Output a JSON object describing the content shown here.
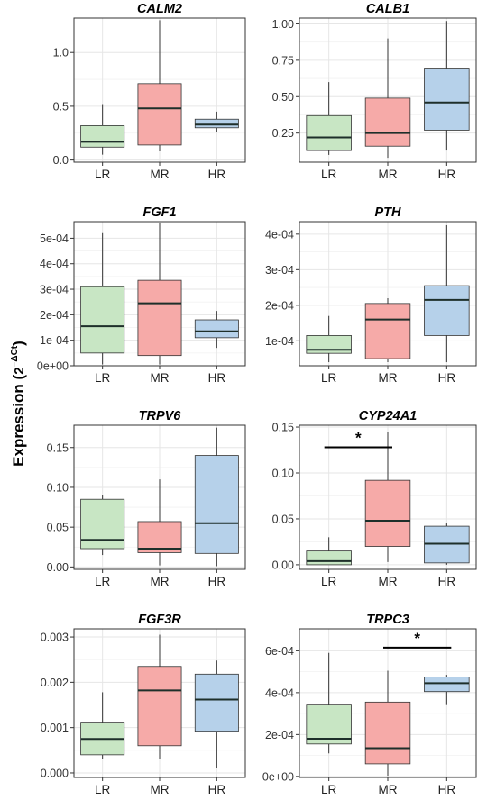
{
  "figure": {
    "y_axis_label_main": "Expression (",
    "y_axis_label_base": "2",
    "y_axis_label_exp": "−ΔCt",
    "y_axis_label_close": ")"
  },
  "colors": {
    "LR": "#c8e6c4",
    "MR": "#f6aaa8",
    "HR": "#b6d1ea",
    "whisker": "#333333",
    "median": "#1e2f2a",
    "grid": "#e6e6e6",
    "panel_border": "#333333"
  },
  "chart_data": [
    {
      "type": "boxplot",
      "title": "CALM2",
      "categories": [
        "LR",
        "MR",
        "HR"
      ],
      "ylim": [
        -0.02,
        1.32
      ],
      "yticks": [
        0.0,
        0.5,
        1.0
      ],
      "yticklabels": [
        "0.0",
        "0.5",
        "1.0"
      ],
      "boxes": [
        {
          "category": "LR",
          "whisker_low": 0.05,
          "q1": 0.12,
          "median": 0.17,
          "q3": 0.32,
          "whisker_high": 0.52
        },
        {
          "category": "MR",
          "whisker_low": 0.08,
          "q1": 0.14,
          "median": 0.48,
          "q3": 0.71,
          "whisker_high": 1.3
        },
        {
          "category": "HR",
          "whisker_low": 0.26,
          "q1": 0.3,
          "median": 0.33,
          "q3": 0.38,
          "whisker_high": 0.45
        }
      ],
      "significance": []
    },
    {
      "type": "boxplot",
      "title": "CALB1",
      "categories": [
        "LR",
        "MR",
        "HR"
      ],
      "ylim": [
        0.05,
        1.04
      ],
      "yticks": [
        0.25,
        0.5,
        0.75,
        1.0
      ],
      "yticklabels": [
        "0.25",
        "0.50",
        "0.75",
        "1.00"
      ],
      "boxes": [
        {
          "category": "LR",
          "whisker_low": 0.1,
          "q1": 0.13,
          "median": 0.22,
          "q3": 0.37,
          "whisker_high": 0.6
        },
        {
          "category": "MR",
          "whisker_low": 0.08,
          "q1": 0.16,
          "median": 0.25,
          "q3": 0.49,
          "whisker_high": 0.9
        },
        {
          "category": "HR",
          "whisker_low": 0.13,
          "q1": 0.27,
          "median": 0.46,
          "q3": 0.69,
          "whisker_high": 1.02
        }
      ],
      "significance": []
    },
    {
      "type": "boxplot",
      "title": "FGF1",
      "categories": [
        "LR",
        "MR",
        "HR"
      ],
      "ylim": [
        0,
        0.000565
      ],
      "yticks": [
        0,
        0.0001,
        0.0002,
        0.0003,
        0.0004,
        0.0005
      ],
      "yticklabels": [
        "0e+00",
        "1e-04",
        "2e-04",
        "3e-04",
        "4e-04",
        "5e-04"
      ],
      "boxes": [
        {
          "category": "LR",
          "whisker_low": 5e-06,
          "q1": 5e-05,
          "median": 0.000155,
          "q3": 0.00031,
          "whisker_high": 0.00052
        },
        {
          "category": "MR",
          "whisker_low": 5e-06,
          "q1": 4e-05,
          "median": 0.000245,
          "q3": 0.000335,
          "whisker_high": 0.00056
        },
        {
          "category": "HR",
          "whisker_low": 7e-05,
          "q1": 0.00011,
          "median": 0.000135,
          "q3": 0.00018,
          "whisker_high": 0.000215
        }
      ],
      "significance": []
    },
    {
      "type": "boxplot",
      "title": "PTH",
      "categories": [
        "LR",
        "MR",
        "HR"
      ],
      "ylim": [
        3e-05,
        0.000435
      ],
      "yticks": [
        0.0001,
        0.0002,
        0.0003,
        0.0004
      ],
      "yticklabels": [
        "1e-04",
        "2e-04",
        "3e-04",
        "4e-04"
      ],
      "boxes": [
        {
          "category": "LR",
          "whisker_low": 4e-05,
          "q1": 6.5e-05,
          "median": 7.5e-05,
          "q3": 0.000115,
          "whisker_high": 0.00017
        },
        {
          "category": "MR",
          "whisker_low": 4e-05,
          "q1": 5e-05,
          "median": 0.00016,
          "q3": 0.000205,
          "whisker_high": 0.00022
        },
        {
          "category": "HR",
          "whisker_low": 4e-05,
          "q1": 0.000115,
          "median": 0.000215,
          "q3": 0.000255,
          "whisker_high": 0.000425
        }
      ],
      "significance": []
    },
    {
      "type": "boxplot",
      "title": "TRPV6",
      "categories": [
        "LR",
        "MR",
        "HR"
      ],
      "ylim": [
        -0.003,
        0.178
      ],
      "yticks": [
        0,
        0.05,
        0.1,
        0.15
      ],
      "yticklabels": [
        "0.00",
        "0.05",
        "0.10",
        "0.15"
      ],
      "boxes": [
        {
          "category": "LR",
          "whisker_low": 0.015,
          "q1": 0.023,
          "median": 0.034,
          "q3": 0.085,
          "whisker_high": 0.09
        },
        {
          "category": "MR",
          "whisker_low": 0.002,
          "q1": 0.018,
          "median": 0.023,
          "q3": 0.057,
          "whisker_high": 0.11
        },
        {
          "category": "HR",
          "whisker_low": 0.001,
          "q1": 0.017,
          "median": 0.055,
          "q3": 0.14,
          "whisker_high": 0.175
        }
      ],
      "significance": []
    },
    {
      "type": "boxplot",
      "title": "CYP24A1",
      "categories": [
        "LR",
        "MR",
        "HR"
      ],
      "ylim": [
        -0.005,
        0.152
      ],
      "yticks": [
        0,
        0.05,
        0.1,
        0.15
      ],
      "yticklabels": [
        "0.00",
        "0.05",
        "0.10",
        "0.15"
      ],
      "boxes": [
        {
          "category": "LR",
          "whisker_low": 0.0,
          "q1": 0.0,
          "median": 0.004,
          "q3": 0.015,
          "whisker_high": 0.03
        },
        {
          "category": "MR",
          "whisker_low": 0.003,
          "q1": 0.02,
          "median": 0.048,
          "q3": 0.092,
          "whisker_high": 0.145
        },
        {
          "category": "HR",
          "whisker_low": 0.0,
          "q1": 0.002,
          "median": 0.023,
          "q3": 0.042,
          "whisker_high": 0.045
        }
      ],
      "significance": [
        {
          "from": "LR",
          "to": "MR",
          "y": 0.128,
          "label": "*"
        }
      ]
    },
    {
      "type": "boxplot",
      "title": "FGF3R",
      "categories": [
        "LR",
        "MR",
        "HR"
      ],
      "ylim": [
        -0.0001,
        0.00318
      ],
      "yticks": [
        0,
        0.001,
        0.002,
        0.003
      ],
      "yticklabels": [
        "0.000",
        "0.001",
        "0.002",
        "0.003"
      ],
      "boxes": [
        {
          "category": "LR",
          "whisker_low": 0.0003,
          "q1": 0.0004,
          "median": 0.00075,
          "q3": 0.00112,
          "whisker_high": 0.00178
        },
        {
          "category": "MR",
          "whisker_low": 0.0003,
          "q1": 0.0006,
          "median": 0.00182,
          "q3": 0.00235,
          "whisker_high": 0.00305
        },
        {
          "category": "HR",
          "whisker_low": 0.0001,
          "q1": 0.00092,
          "median": 0.00162,
          "q3": 0.00218,
          "whisker_high": 0.00248
        }
      ],
      "significance": []
    },
    {
      "type": "boxplot",
      "title": "TRPC3",
      "categories": [
        "LR",
        "MR",
        "HR"
      ],
      "ylim": [
        -5e-06,
        0.000705
      ],
      "yticks": [
        0,
        0.0002,
        0.0004,
        0.0006
      ],
      "yticklabels": [
        "0e+00",
        "2e-04",
        "4e-04",
        "6e-04"
      ],
      "boxes": [
        {
          "category": "LR",
          "whisker_low": 0.00011,
          "q1": 0.000155,
          "median": 0.00018,
          "q3": 0.000345,
          "whisker_high": 0.00059
        },
        {
          "category": "MR",
          "whisker_low": 3e-06,
          "q1": 6e-05,
          "median": 0.000135,
          "q3": 0.000355,
          "whisker_high": 0.000505
        },
        {
          "category": "HR",
          "whisker_low": 0.000345,
          "q1": 0.000405,
          "median": 0.000445,
          "q3": 0.000475,
          "whisker_high": 0.000485
        }
      ],
      "significance": [
        {
          "from": "MR",
          "to": "HR",
          "y": 0.000615,
          "label": "*"
        }
      ]
    }
  ]
}
